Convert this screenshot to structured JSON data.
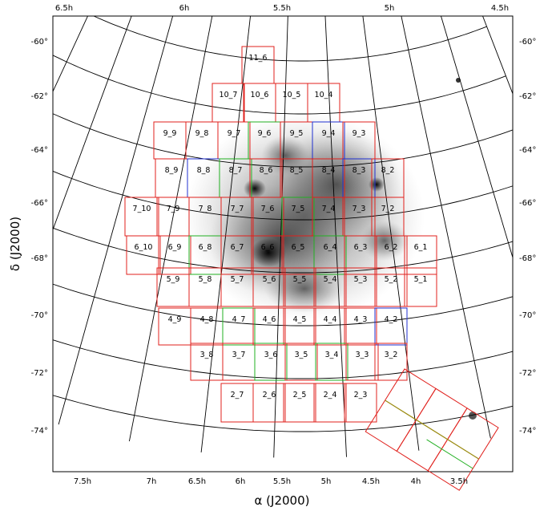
{
  "top_ra_ticks": [
    "6.5h",
    "6h",
    "5.5h",
    "5h",
    "4.5h"
  ],
  "bottom_ra_ticks": [
    "7.5h",
    "7h",
    "6.5h",
    "6h",
    "5.5h",
    "5h",
    "4.5h",
    "4h",
    "3.5h"
  ],
  "dec_ticks": [
    "-60°",
    "-62°",
    "-64°",
    "-66°",
    "-68°",
    "-70°",
    "-72°",
    "-74°"
  ],
  "xlabel": "α (J2000)",
  "ylabel": "δ (J2000)",
  "fields": [
    {
      "label": "11_6",
      "border": "red"
    },
    {
      "label": "10_7",
      "border": "red"
    },
    {
      "label": "10_6",
      "border": "red"
    },
    {
      "label": "10_5",
      "border": "red"
    },
    {
      "label": "10_4",
      "border": "red"
    },
    {
      "label": "9_9",
      "border": "red"
    },
    {
      "label": "9_8",
      "border": "red"
    },
    {
      "label": "9_7",
      "border": "red"
    },
    {
      "label": "9_6",
      "border": "green"
    },
    {
      "label": "9_5",
      "border": "red"
    },
    {
      "label": "9_4",
      "border": "blue"
    },
    {
      "label": "9_3",
      "border": "red"
    },
    {
      "label": "8_9",
      "border": "red"
    },
    {
      "label": "8_8",
      "border": "blue"
    },
    {
      "label": "8_7",
      "border": "green"
    },
    {
      "label": "8_6",
      "border": "red"
    },
    {
      "label": "8_5",
      "border": "red"
    },
    {
      "label": "8_4",
      "border": "red"
    },
    {
      "label": "8_3",
      "border": "blue"
    },
    {
      "label": "8_2",
      "border": "red"
    },
    {
      "label": "7_10",
      "border": "red"
    },
    {
      "label": "7_9",
      "border": "red"
    },
    {
      "label": "7_8",
      "border": "red"
    },
    {
      "label": "7_7",
      "border": "red"
    },
    {
      "label": "7_6",
      "border": "red"
    },
    {
      "label": "7_5",
      "border": "green"
    },
    {
      "label": "7_4",
      "border": "red"
    },
    {
      "label": "7_3",
      "border": "red"
    },
    {
      "label": "7_2",
      "border": "red"
    },
    {
      "label": "6_10",
      "border": "red"
    },
    {
      "label": "6_9",
      "border": "red"
    },
    {
      "label": "6_8",
      "border": "green"
    },
    {
      "label": "6_7",
      "border": "red"
    },
    {
      "label": "6_6",
      "border": "red"
    },
    {
      "label": "6_5",
      "border": "red"
    },
    {
      "label": "6_4",
      "border": "green"
    },
    {
      "label": "6_3",
      "border": "red"
    },
    {
      "label": "6_2",
      "border": "red"
    },
    {
      "label": "6_1",
      "border": "red"
    },
    {
      "label": "5_9",
      "border": "red"
    },
    {
      "label": "5_8",
      "border": "red"
    },
    {
      "label": "5_7",
      "border": "red"
    },
    {
      "label": "5_6",
      "border": "red"
    },
    {
      "label": "5_5",
      "border": "red"
    },
    {
      "label": "5_4",
      "border": "red"
    },
    {
      "label": "5_3",
      "border": "red"
    },
    {
      "label": "5_2",
      "border": "red"
    },
    {
      "label": "5_1",
      "border": "red"
    },
    {
      "label": "4_9",
      "border": "red"
    },
    {
      "label": "4_8",
      "border": "red"
    },
    {
      "label": "4_7",
      "border": "green"
    },
    {
      "label": "4_6",
      "border": "red"
    },
    {
      "label": "4_5",
      "border": "red"
    },
    {
      "label": "4_4",
      "border": "red"
    },
    {
      "label": "4_3",
      "border": "red"
    },
    {
      "label": "4_2",
      "border": "blue"
    },
    {
      "label": "3_8",
      "border": "red"
    },
    {
      "label": "3_7",
      "border": "red"
    },
    {
      "label": "3_6",
      "border": "green"
    },
    {
      "label": "3_5",
      "border": "red"
    },
    {
      "label": "3_4",
      "border": "green"
    },
    {
      "label": "3_3",
      "border": "red"
    },
    {
      "label": "3_2",
      "border": "red"
    },
    {
      "label": "2_7",
      "border": "red"
    },
    {
      "label": "2_6",
      "border": "red"
    },
    {
      "label": "2_5",
      "border": "red"
    },
    {
      "label": "2_4",
      "border": "red"
    },
    {
      "label": "2_3",
      "border": "red"
    }
  ],
  "colors": {
    "red": "#e0201c",
    "green": "#22b022",
    "blue": "#2030d0",
    "olive": "#9a8a10",
    "grid": "#000000"
  }
}
